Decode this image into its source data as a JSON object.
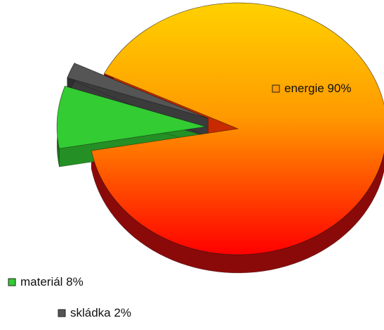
{
  "chart_data": {
    "type": "pie",
    "style": "3d-exploded",
    "title": "",
    "slices": [
      {
        "label": "energie 90%",
        "name": "energie",
        "value": 90,
        "color": "#ff8c00",
        "gradient_top": "#ffd100",
        "gradient_bottom": "#ff0000"
      },
      {
        "label": "materiál 8%",
        "name": "materiál",
        "value": 8,
        "color": "#33cc33"
      },
      {
        "label": "skládka 2%",
        "name": "skládka",
        "value": 2,
        "color": "#555555"
      }
    ],
    "legend": "labels beside slices"
  }
}
